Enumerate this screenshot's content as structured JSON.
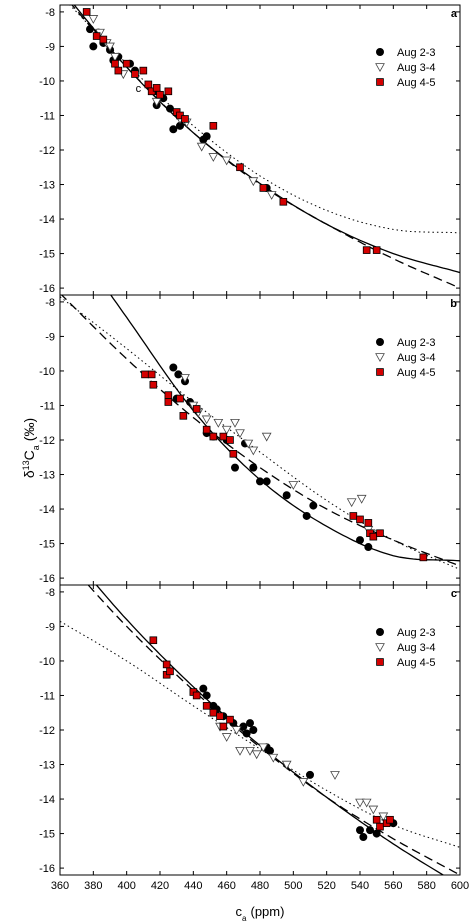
{
  "chart_data": {
    "type": "scatter",
    "xlabel_main": "c",
    "xlabel_sub": "a",
    "xlabel_unit": "(ppm)",
    "ylabel_delta": "δ",
    "ylabel_sup": "13",
    "ylabel_main": "C",
    "ylabel_sub": "a",
    "ylabel_unit": "(‰)",
    "xlim": [
      360,
      600
    ],
    "ylim": [
      -16.2,
      -7.8
    ],
    "xticks": [
      360,
      380,
      400,
      420,
      440,
      460,
      480,
      500,
      520,
      540,
      560,
      580,
      600
    ],
    "yticks": [
      -8,
      -9,
      -10,
      -11,
      -12,
      -13,
      -14,
      -15,
      -16
    ],
    "colors": {
      "aug23": "#000000",
      "aug34": "#ffffff",
      "aug45": "#d40000"
    },
    "panels": [
      {
        "label": "a",
        "legend": [
          {
            "key": "aug23",
            "name": "Aug 2-3",
            "marker": "circle"
          },
          {
            "key": "aug34",
            "name": "Aug 3-4",
            "marker": "triangle"
          },
          {
            "key": "aug45",
            "name": "Aug 4-5",
            "marker": "square"
          }
        ],
        "series": [
          {
            "key": "aug23",
            "marker": "circle",
            "points": [
              [
                378,
                -8.5
              ],
              [
                380,
                -9.0
              ],
              [
                383,
                -8.6
              ],
              [
                386,
                -8.9
              ],
              [
                390,
                -9.1
              ],
              [
                392,
                -9.4
              ],
              [
                395,
                -9.3
              ],
              [
                402,
                -9.5
              ],
              [
                405,
                -9.7
              ],
              [
                418,
                -10.3
              ],
              [
                418,
                -10.7
              ],
              [
                422,
                -10.5
              ],
              [
                426,
                -10.8
              ],
              [
                428,
                -11.4
              ],
              [
                432,
                -11.3
              ],
              [
                446,
                -11.7
              ],
              [
                448,
                -11.6
              ],
              [
                484,
                -13.1
              ]
            ]
          },
          {
            "key": "aug34",
            "marker": "triangle",
            "points": [
              [
                380,
                -8.2
              ],
              [
                384,
                -8.6
              ],
              [
                388,
                -8.9
              ],
              [
                390,
                -9.0
              ],
              [
                393,
                -9.3
              ],
              [
                398,
                -9.8
              ],
              [
                418,
                -10.6
              ],
              [
                432,
                -11.1
              ],
              [
                436,
                -11.2
              ],
              [
                445,
                -11.9
              ],
              [
                452,
                -12.2
              ],
              [
                460,
                -12.3
              ],
              [
                476,
                -12.9
              ],
              [
                487,
                -13.3
              ]
            ]
          },
          {
            "key": "aug45",
            "marker": "square",
            "points": [
              [
                376,
                -8.0
              ],
              [
                382,
                -8.7
              ],
              [
                386,
                -8.8
              ],
              [
                393,
                -9.5
              ],
              [
                395,
                -9.7
              ],
              [
                400,
                -9.5
              ],
              [
                405,
                -9.8
              ],
              [
                410,
                -9.7
              ],
              [
                413,
                -10.1
              ],
              [
                415,
                -10.3
              ],
              [
                418,
                -10.2
              ],
              [
                420,
                -10.4
              ],
              [
                425,
                -10.3
              ],
              [
                430,
                -10.9
              ],
              [
                432,
                -11.0
              ],
              [
                435,
                -11.1
              ],
              [
                452,
                -11.3
              ],
              [
                468,
                -12.5
              ],
              [
                482,
                -13.1
              ],
              [
                494,
                -13.5
              ],
              [
                544,
                -14.9
              ],
              [
                550,
                -14.9
              ]
            ]
          }
        ],
        "fits": [
          {
            "style": "solid",
            "x": [
              360,
              400,
              440,
              480,
              520,
              560,
              600
            ],
            "y": [
              -7.3,
              -9.6,
              -11.5,
              -12.97,
              -14.15,
              -15.0,
              -15.55
            ]
          },
          {
            "style": "dashed",
            "x": [
              360,
              400,
              440,
              480,
              520,
              560,
              600
            ],
            "y": [
              -7.4,
              -9.6,
              -11.5,
              -13.0,
              -14.15,
              -15.15,
              -16.0
            ]
          },
          {
            "style": "dotted",
            "x": [
              360,
              400,
              440,
              480,
              520,
              560,
              600
            ],
            "y": [
              -7.5,
              -9.5,
              -11.3,
              -12.75,
              -13.75,
              -14.3,
              -14.4
            ]
          }
        ],
        "annotations": [
          {
            "text": "c",
            "x": 407,
            "y": -10.2
          }
        ]
      },
      {
        "label": "b",
        "legend": [
          {
            "key": "aug23",
            "name": "Aug 2-3",
            "marker": "circle"
          },
          {
            "key": "aug34",
            "name": "Aug 3-4",
            "marker": "triangle"
          },
          {
            "key": "aug45",
            "name": "Aug 4-5",
            "marker": "square"
          }
        ],
        "series": [
          {
            "key": "aug23",
            "marker": "circle",
            "points": [
              [
                428,
                -9.9
              ],
              [
                431,
                -10.1
              ],
              [
                435,
                -10.3
              ],
              [
                430,
                -10.8
              ],
              [
                438,
                -10.9
              ],
              [
                448,
                -11.8
              ],
              [
                452,
                -11.9
              ],
              [
                460,
                -12.0
              ],
              [
                465,
                -12.8
              ],
              [
                471,
                -12.1
              ],
              [
                476,
                -12.8
              ],
              [
                480,
                -13.2
              ],
              [
                484,
                -13.2
              ],
              [
                496,
                -13.6
              ],
              [
                508,
                -14.2
              ],
              [
                512,
                -13.9
              ],
              [
                540,
                -14.9
              ],
              [
                545,
                -15.1
              ]
            ]
          },
          {
            "key": "aug34",
            "marker": "triangle",
            "points": [
              [
                435,
                -10.2
              ],
              [
                440,
                -11.0
              ],
              [
                443,
                -11.2
              ],
              [
                448,
                -11.4
              ],
              [
                455,
                -11.5
              ],
              [
                460,
                -11.7
              ],
              [
                465,
                -11.5
              ],
              [
                468,
                -11.8
              ],
              [
                473,
                -12.1
              ],
              [
                476,
                -12.3
              ],
              [
                484,
                -11.9
              ],
              [
                500,
                -13.3
              ],
              [
                535,
                -13.8
              ],
              [
                541,
                -13.7
              ],
              [
                545,
                -14.6
              ]
            ]
          },
          {
            "key": "aug45",
            "marker": "square",
            "points": [
              [
                411,
                -10.1
              ],
              [
                415,
                -10.1
              ],
              [
                416,
                -10.4
              ],
              [
                425,
                -10.7
              ],
              [
                425,
                -10.9
              ],
              [
                432,
                -10.8
              ],
              [
                434,
                -11.3
              ],
              [
                442,
                -11.1
              ],
              [
                448,
                -11.7
              ],
              [
                452,
                -11.9
              ],
              [
                458,
                -11.9
              ],
              [
                462,
                -12.0
              ],
              [
                464,
                -12.4
              ],
              [
                536,
                -14.2
              ],
              [
                540,
                -14.3
              ],
              [
                545,
                -14.4
              ],
              [
                546,
                -14.7
              ],
              [
                548,
                -14.8
              ],
              [
                552,
                -14.7
              ],
              [
                578,
                -15.4
              ]
            ]
          }
        ],
        "fits": [
          {
            "style": "solid",
            "x": [
              360,
              400,
              440,
              480,
              520,
              560,
              600
            ],
            "y": [
              -5.7,
              -8.45,
              -11.15,
              -13.15,
              -14.5,
              -15.35,
              -15.5
            ]
          },
          {
            "style": "dashed",
            "x": [
              360,
              400,
              440,
              480,
              520,
              560,
              600
            ],
            "y": [
              -7.75,
              -9.65,
              -11.35,
              -12.8,
              -14.0,
              -14.9,
              -15.65
            ]
          },
          {
            "style": "dotted",
            "x": [
              360,
              400,
              440,
              480,
              520,
              560,
              600
            ],
            "y": [
              -7.85,
              -9.35,
              -10.9,
              -12.35,
              -13.75,
              -14.9,
              -15.75
            ]
          }
        ],
        "annotations": []
      },
      {
        "label": "c",
        "legend": [
          {
            "key": "aug23",
            "name": "Aug 2-3",
            "marker": "circle"
          },
          {
            "key": "aug34",
            "name": "Aug 3-4",
            "marker": "triangle"
          },
          {
            "key": "aug45",
            "name": "Aug 4-5",
            "marker": "square"
          }
        ],
        "series": [
          {
            "key": "aug23",
            "marker": "circle",
            "points": [
              [
                446,
                -10.8
              ],
              [
                448,
                -11.0
              ],
              [
                452,
                -11.3
              ],
              [
                454,
                -11.4
              ],
              [
                458,
                -11.6
              ],
              [
                464,
                -11.8
              ],
              [
                470,
                -11.9
              ],
              [
                472,
                -12.1
              ],
              [
                474,
                -11.8
              ],
              [
                476,
                -12.0
              ],
              [
                484,
                -12.5
              ],
              [
                486,
                -12.6
              ],
              [
                510,
                -13.3
              ],
              [
                540,
                -14.9
              ],
              [
                542,
                -15.1
              ],
              [
                546,
                -14.9
              ],
              [
                550,
                -15.0
              ],
              [
                560,
                -14.7
              ]
            ]
          },
          {
            "key": "aug34",
            "marker": "triangle",
            "points": [
              [
                456,
                -11.9
              ],
              [
                460,
                -12.2
              ],
              [
                466,
                -12.0
              ],
              [
                468,
                -12.6
              ],
              [
                474,
                -12.6
              ],
              [
                478,
                -12.7
              ],
              [
                482,
                -12.5
              ],
              [
                488,
                -12.8
              ],
              [
                496,
                -13.0
              ],
              [
                506,
                -13.5
              ],
              [
                525,
                -13.3
              ],
              [
                540,
                -14.1
              ],
              [
                544,
                -14.1
              ],
              [
                548,
                -14.3
              ],
              [
                554,
                -14.5
              ]
            ]
          },
          {
            "key": "aug45",
            "marker": "square",
            "points": [
              [
                416,
                -9.4
              ],
              [
                424,
                -10.1
              ],
              [
                424,
                -10.4
              ],
              [
                426,
                -10.3
              ],
              [
                440,
                -10.9
              ],
              [
                442,
                -11.0
              ],
              [
                448,
                -11.3
              ],
              [
                452,
                -11.5
              ],
              [
                456,
                -11.6
              ],
              [
                458,
                -11.9
              ],
              [
                462,
                -11.7
              ],
              [
                550,
                -14.6
              ],
              [
                552,
                -14.8
              ],
              [
                556,
                -14.7
              ],
              [
                558,
                -14.6
              ]
            ]
          }
        ],
        "fits": [
          {
            "style": "solid",
            "x": [
              360,
              400,
              440,
              480,
              520,
              560,
              600
            ],
            "y": [
              -6.55,
              -8.8,
              -10.75,
              -12.45,
              -13.95,
              -15.3,
              -16.5
            ]
          },
          {
            "style": "dashed",
            "x": [
              360,
              400,
              440,
              480,
              520,
              560,
              600
            ],
            "y": [
              -6.9,
              -9.0,
              -10.85,
              -12.5,
              -13.95,
              -15.15,
              -16.2
            ]
          },
          {
            "style": "dotted",
            "x": [
              360,
              400,
              440,
              480,
              520,
              560,
              600
            ],
            "y": [
              -8.85,
              -10.0,
              -11.3,
              -12.55,
              -13.75,
              -14.75,
              -15.4
            ]
          }
        ],
        "annotations": []
      }
    ]
  }
}
